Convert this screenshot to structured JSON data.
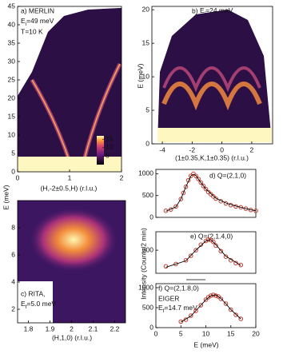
{
  "chart_data": [
    {
      "type": "heatmap",
      "panel": "a) MERLIN",
      "subtitle": {
        "main": "E",
        "sub": "i",
        "rest": "=49 meV"
      },
      "note": "T=10 K",
      "xlabel": "(H,-2±0.5,H) (r.l.u.)",
      "xlim": [
        0,
        2
      ],
      "xticks": [
        0,
        1,
        2
      ],
      "ylim": [
        0,
        45
      ],
      "yticks": [
        0,
        5,
        10,
        15,
        20,
        25,
        30,
        35,
        40,
        45
      ],
      "colorbar_lim": [
        0,
        17
      ],
      "colorbar_ticks": [
        5,
        10,
        15
      ]
    },
    {
      "type": "heatmap",
      "panel": "b) ",
      "subtitle": {
        "main": "E",
        "sub": "i",
        "rest": "=24 meV"
      },
      "xlabel": "(1±0.35,K,1±0.35) (r.l.u.)",
      "ylabel": "E (meV)",
      "xlim": [
        -4.7,
        3.4
      ],
      "xticks": [
        -4,
        -2,
        0,
        2
      ],
      "ylim": [
        0,
        20.5
      ],
      "yticks": [
        0,
        5,
        10,
        15,
        20
      ]
    },
    {
      "type": "heatmap",
      "panel": "c) RITA,",
      "subtitle": {
        "main": "E",
        "sub": "f",
        "rest": "=5.0 meV"
      },
      "xlabel": "(H,1,0) (r.l.u.)",
      "ylabel": "E (meV)",
      "xlim": [
        1.75,
        2.25
      ],
      "xticks": [
        1.8,
        1.9,
        2,
        2.1,
        2.2
      ],
      "ylim": [
        1,
        10
      ],
      "yticks": [
        2,
        4,
        6,
        8
      ]
    },
    {
      "type": "scatter",
      "panel": "d) Q=(2,1,0)",
      "xlim": [
        0,
        20
      ],
      "ylim": [
        0,
        1100
      ],
      "yticks": [
        0,
        500,
        1000
      ],
      "series": [
        {
          "type": "scatter",
          "color": "#c0392b",
          "x": [
            2,
            3,
            4,
            5,
            5.5,
            6,
            6.5,
            7,
            7.5,
            8,
            8.5,
            9,
            9.5,
            10,
            10.5,
            11,
            11.5,
            12,
            13,
            14,
            15,
            16,
            17,
            18,
            19,
            20
          ],
          "values": [
            150,
            180,
            250,
            420,
            560,
            700,
            850,
            950,
            1000,
            950,
            880,
            800,
            720,
            650,
            580,
            530,
            480,
            430,
            370,
            320,
            280,
            250,
            230,
            200,
            170,
            150
          ]
        },
        {
          "type": "line",
          "color": "#000000",
          "x": [
            2,
            4,
            5,
            6,
            7,
            7.5,
            8,
            9,
            10,
            12,
            14,
            16,
            18,
            20
          ],
          "values": [
            140,
            240,
            420,
            700,
            950,
            990,
            960,
            800,
            650,
            440,
            330,
            260,
            200,
            150
          ]
        }
      ]
    },
    {
      "type": "scatter",
      "panel": "e) Q=(2,1.4,0)",
      "ylabel": "Intensity (Counts/2 min)",
      "xlim": [
        0,
        20
      ],
      "ylim": [
        0,
        900
      ],
      "yticks": [
        500
      ],
      "series": [
        {
          "type": "scatter",
          "color": "#c0392b",
          "x": [
            2,
            4,
            6,
            7,
            8,
            9,
            10,
            10.5,
            11,
            11.5,
            12,
            13,
            14,
            15,
            16,
            17
          ],
          "values": [
            150,
            200,
            280,
            380,
            500,
            620,
            700,
            730,
            720,
            680,
            600,
            480,
            360,
            280,
            220,
            180
          ]
        },
        {
          "type": "line",
          "color": "#000000",
          "x": [
            2,
            6,
            8,
            10,
            11,
            12,
            14,
            17
          ],
          "values": [
            130,
            270,
            500,
            700,
            730,
            620,
            370,
            170
          ]
        }
      ]
    },
    {
      "type": "scatter",
      "panel": "f) Q=(2,1.8,0)",
      "note": "EIGER",
      "subtitle": {
        "main": "E",
        "sub": "f",
        "rest": "=14.7 meV"
      },
      "xlabel": "E (meV)",
      "xlim": [
        0,
        20
      ],
      "xticks": [
        0,
        5,
        10,
        15,
        20
      ],
      "ylim": [
        0,
        1100
      ],
      "yticks": [
        0,
        500,
        1000
      ],
      "series": [
        {
          "type": "scatter",
          "color": "#c0392b",
          "x": [
            5,
            6,
            7,
            8,
            9,
            10,
            10.5,
            11,
            11.5,
            12,
            12.5,
            13,
            14,
            15,
            16,
            17
          ],
          "values": [
            150,
            200,
            300,
            420,
            560,
            700,
            760,
            800,
            820,
            800,
            780,
            720,
            600,
            450,
            320,
            220
          ]
        },
        {
          "type": "line",
          "color": "#000000",
          "x": [
            5,
            7,
            9,
            10,
            11,
            12,
            13,
            14,
            15,
            17
          ],
          "values": [
            140,
            290,
            560,
            700,
            800,
            820,
            730,
            600,
            450,
            220
          ]
        }
      ]
    }
  ]
}
